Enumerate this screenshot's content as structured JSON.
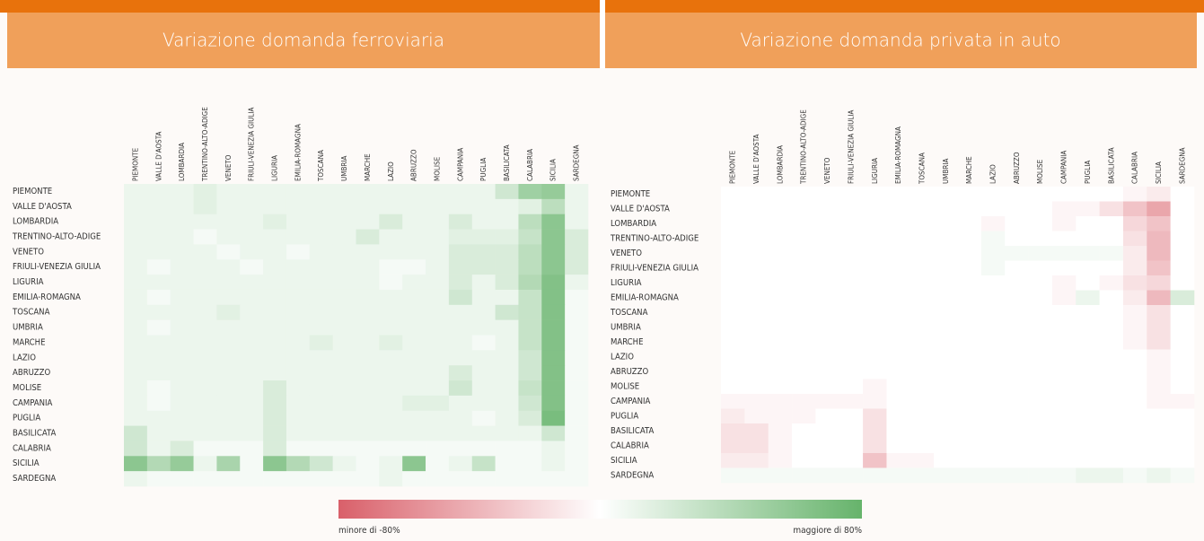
{
  "chart_data": [
    {
      "type": "heatmap",
      "title": "Variazione domanda ferroviaria",
      "rows": [
        "PIEMONTE",
        "VALLE D'AOSTA",
        "LOMBARDIA",
        "TRENTINO-ALTO-ADIGE",
        "VENETO",
        "FRIULI-VENEZIA GIULIA",
        "LIGURIA",
        "EMILIA-ROMAGNA",
        "TOSCANA",
        "UMBRIA",
        "MARCHE",
        "LAZIO",
        "ABRUZZO",
        "MOLISE",
        "CAMPANIA",
        "PUGLIA",
        "BASILICATA",
        "CALABRIA",
        "SICILIA",
        "SARDEGNA"
      ],
      "categories": [
        "PIEMONTE",
        "VALLE D'AOSTA",
        "LOMBARDIA",
        "TRENTINO-ALTO-ADIGE",
        "VENETO",
        "FRIULI-VENEZIA GIULIA",
        "LIGURIA",
        "EMILIA-ROMAGNA",
        "TOSCANA",
        "UMBRIA",
        "MARCHE",
        "LAZIO",
        "ABRUZZO",
        "MOLISE",
        "CAMPANIA",
        "PUGLIA",
        "BASILICATA",
        "CALABRIA",
        "SICILIA",
        "SARDEGNA"
      ],
      "values": [
        [
          10,
          10,
          10,
          15,
          10,
          10,
          10,
          10,
          10,
          10,
          10,
          10,
          10,
          10,
          10,
          10,
          25,
          50,
          55,
          10
        ],
        [
          10,
          10,
          10,
          15,
          10,
          10,
          10,
          10,
          10,
          10,
          10,
          10,
          10,
          10,
          10,
          10,
          10,
          15,
          35,
          10
        ],
        [
          10,
          10,
          10,
          10,
          10,
          10,
          15,
          10,
          10,
          10,
          10,
          20,
          10,
          10,
          20,
          10,
          10,
          35,
          60,
          10
        ],
        [
          10,
          10,
          10,
          5,
          10,
          10,
          10,
          10,
          10,
          10,
          20,
          10,
          10,
          10,
          15,
          15,
          15,
          30,
          60,
          20
        ],
        [
          10,
          10,
          10,
          10,
          5,
          10,
          10,
          5,
          10,
          10,
          10,
          10,
          10,
          10,
          20,
          20,
          20,
          35,
          60,
          20
        ],
        [
          10,
          5,
          10,
          10,
          10,
          5,
          10,
          10,
          10,
          10,
          10,
          5,
          5,
          10,
          20,
          20,
          20,
          35,
          60,
          20
        ],
        [
          10,
          10,
          10,
          10,
          10,
          10,
          10,
          10,
          10,
          10,
          10,
          5,
          10,
          10,
          20,
          10,
          20,
          40,
          65,
          10
        ],
        [
          10,
          5,
          10,
          10,
          10,
          10,
          10,
          10,
          10,
          10,
          10,
          10,
          10,
          10,
          25,
          10,
          10,
          30,
          65,
          5
        ],
        [
          10,
          10,
          10,
          10,
          15,
          10,
          10,
          10,
          10,
          10,
          10,
          10,
          10,
          10,
          10,
          10,
          25,
          30,
          65,
          5
        ],
        [
          10,
          5,
          10,
          10,
          10,
          10,
          10,
          10,
          10,
          10,
          10,
          10,
          10,
          10,
          10,
          10,
          10,
          30,
          65,
          5
        ],
        [
          10,
          10,
          10,
          10,
          10,
          10,
          10,
          10,
          15,
          10,
          10,
          15,
          10,
          10,
          10,
          5,
          10,
          30,
          65,
          5
        ],
        [
          10,
          10,
          10,
          10,
          10,
          10,
          10,
          10,
          10,
          10,
          10,
          10,
          10,
          10,
          10,
          10,
          10,
          25,
          65,
          5
        ],
        [
          10,
          10,
          10,
          10,
          10,
          10,
          10,
          10,
          10,
          10,
          10,
          10,
          10,
          10,
          20,
          10,
          10,
          25,
          65,
          5
        ],
        [
          10,
          5,
          10,
          10,
          10,
          10,
          20,
          10,
          10,
          10,
          10,
          10,
          10,
          10,
          25,
          10,
          10,
          30,
          65,
          5
        ],
        [
          10,
          5,
          10,
          10,
          10,
          10,
          20,
          10,
          10,
          10,
          10,
          10,
          15,
          15,
          10,
          10,
          10,
          25,
          65,
          5
        ],
        [
          10,
          10,
          10,
          10,
          10,
          10,
          20,
          10,
          10,
          10,
          10,
          10,
          10,
          10,
          10,
          5,
          10,
          20,
          70,
          5
        ],
        [
          25,
          10,
          10,
          10,
          10,
          10,
          20,
          10,
          10,
          10,
          10,
          10,
          10,
          10,
          10,
          10,
          10,
          10,
          25,
          5
        ],
        [
          25,
          10,
          20,
          5,
          5,
          5,
          20,
          5,
          5,
          5,
          5,
          5,
          5,
          5,
          5,
          5,
          5,
          5,
          10,
          5
        ],
        [
          60,
          40,
          55,
          10,
          45,
          5,
          60,
          40,
          25,
          10,
          5,
          10,
          60,
          5,
          10,
          30,
          5,
          5,
          10,
          5
        ],
        [
          10,
          5,
          5,
          5,
          5,
          5,
          5,
          5,
          5,
          5,
          5,
          10,
          5,
          5,
          5,
          5,
          5,
          5,
          5,
          5
        ]
      ]
    },
    {
      "type": "heatmap",
      "title": "Variazione domanda privata in auto",
      "rows": [
        "PIEMONTE",
        "VALLE D'AOSTA",
        "LOMBARDIA",
        "TRENTINO-ALTO-ADIGE",
        "VENETO",
        "FRIULI-VENEZIA GIULIA",
        "LIGURIA",
        "EMILIA-ROMAGNA",
        "TOSCANA",
        "UMBRIA",
        "MARCHE",
        "LAZIO",
        "ABRUZZO",
        "MOLISE",
        "CAMPANIA",
        "PUGLIA",
        "BASILICATA",
        "CALABRIA",
        "SICILIA",
        "SARDEGNA"
      ],
      "categories": [
        "PIEMONTE",
        "VALLE D'AOSTA",
        "LOMBARDIA",
        "TRENTINO-ALTO-ADIGE",
        "VENETO",
        "FRIULI-VENEZIA GIULIA",
        "LIGURIA",
        "EMILIA-ROMAGNA",
        "TOSCANA",
        "UMBRIA",
        "MARCHE",
        "LAZIO",
        "ABRUZZO",
        "MOLISE",
        "CAMPANIA",
        "PUGLIA",
        "BASILICATA",
        "CALABRIA",
        "SICILIA",
        "SARDEGNA"
      ],
      "values": [
        [
          0,
          0,
          0,
          0,
          0,
          0,
          0,
          0,
          0,
          0,
          0,
          0,
          0,
          0,
          0,
          0,
          0,
          -5,
          -10,
          0
        ],
        [
          0,
          0,
          0,
          0,
          0,
          0,
          0,
          0,
          0,
          0,
          0,
          0,
          0,
          0,
          -5,
          -5,
          -15,
          -30,
          -45,
          0
        ],
        [
          0,
          0,
          0,
          0,
          0,
          0,
          0,
          0,
          0,
          0,
          0,
          -5,
          0,
          0,
          -5,
          0,
          0,
          -20,
          -30,
          0
        ],
        [
          0,
          0,
          0,
          0,
          0,
          0,
          0,
          0,
          0,
          0,
          0,
          5,
          0,
          0,
          0,
          0,
          0,
          -15,
          -35,
          0
        ],
        [
          0,
          0,
          0,
          0,
          0,
          0,
          0,
          0,
          0,
          0,
          0,
          5,
          5,
          5,
          5,
          5,
          5,
          -10,
          -35,
          0
        ],
        [
          0,
          0,
          0,
          0,
          0,
          0,
          0,
          0,
          0,
          0,
          0,
          5,
          0,
          0,
          0,
          0,
          0,
          -10,
          -30,
          0
        ],
        [
          0,
          0,
          0,
          0,
          0,
          0,
          0,
          0,
          0,
          0,
          0,
          0,
          0,
          0,
          -5,
          0,
          -5,
          -15,
          -20,
          0
        ],
        [
          0,
          0,
          0,
          0,
          0,
          0,
          0,
          0,
          0,
          0,
          0,
          0,
          0,
          0,
          -5,
          10,
          0,
          -10,
          -35,
          20
        ],
        [
          0,
          0,
          0,
          0,
          0,
          0,
          0,
          0,
          0,
          0,
          0,
          0,
          0,
          0,
          0,
          0,
          0,
          -5,
          -15,
          0
        ],
        [
          0,
          0,
          0,
          0,
          0,
          0,
          0,
          0,
          0,
          0,
          0,
          0,
          0,
          0,
          0,
          0,
          0,
          -5,
          -15,
          0
        ],
        [
          0,
          0,
          0,
          0,
          0,
          0,
          0,
          0,
          0,
          0,
          0,
          0,
          0,
          0,
          0,
          0,
          0,
          -5,
          -15,
          0
        ],
        [
          0,
          0,
          0,
          0,
          0,
          0,
          0,
          0,
          0,
          0,
          0,
          0,
          0,
          0,
          0,
          0,
          0,
          0,
          -5,
          0
        ],
        [
          0,
          0,
          0,
          0,
          0,
          0,
          0,
          0,
          0,
          0,
          0,
          0,
          0,
          0,
          0,
          0,
          0,
          0,
          -5,
          0
        ],
        [
          0,
          0,
          0,
          0,
          0,
          0,
          -5,
          0,
          0,
          0,
          0,
          0,
          0,
          0,
          0,
          0,
          0,
          0,
          -5,
          0
        ],
        [
          -5,
          -5,
          -5,
          -5,
          -5,
          -5,
          -5,
          0,
          0,
          0,
          0,
          0,
          0,
          0,
          0,
          0,
          0,
          0,
          -5,
          -5
        ],
        [
          -10,
          -5,
          -5,
          -5,
          0,
          0,
          -15,
          0,
          0,
          0,
          0,
          0,
          0,
          0,
          0,
          0,
          0,
          0,
          0,
          0
        ],
        [
          -15,
          -15,
          -5,
          0,
          0,
          0,
          -15,
          0,
          0,
          0,
          0,
          0,
          0,
          0,
          0,
          0,
          0,
          0,
          0,
          0
        ],
        [
          -15,
          -15,
          -5,
          0,
          0,
          0,
          -15,
          0,
          0,
          0,
          0,
          0,
          0,
          0,
          0,
          0,
          0,
          0,
          0,
          0
        ],
        [
          -10,
          -10,
          -5,
          0,
          0,
          0,
          -30,
          -5,
          -5,
          0,
          0,
          0,
          0,
          0,
          0,
          0,
          0,
          0,
          0,
          0
        ],
        [
          5,
          5,
          5,
          5,
          5,
          5,
          5,
          5,
          5,
          5,
          5,
          5,
          5,
          5,
          5,
          10,
          10,
          5,
          10,
          5
        ]
      ]
    }
  ],
  "legend": {
    "min_label": "minore di -80%",
    "max_label": "maggiore di 80%",
    "zlim": [
      -80,
      80
    ],
    "low_color": "#d9606a",
    "mid_color": "#ffffff",
    "high_color": "#66b36b"
  }
}
